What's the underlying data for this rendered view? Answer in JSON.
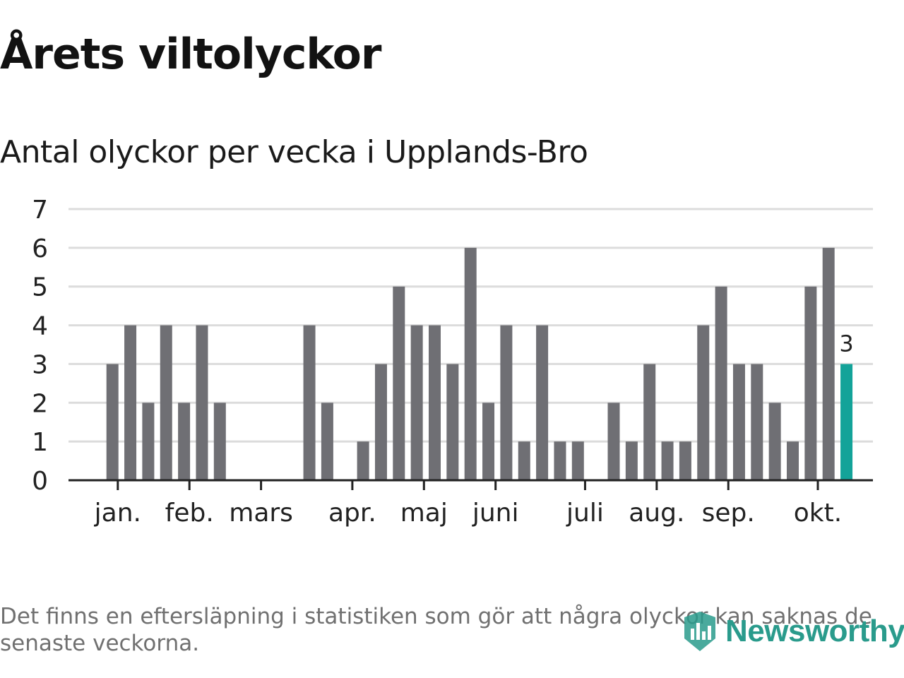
{
  "title": "Årets viltolyckor",
  "subtitle": "Antal olyckor per vecka i Upplands-Bro",
  "footnote": "Det finns en eftersläpning i statistiken som gör att några olyckor kan saknas de senaste veckorna.",
  "brand": {
    "name": "Newsworthy",
    "icon": "newsworthy-logo-icon"
  },
  "colors": {
    "bar": "#6f6f74",
    "highlight": "#13a399",
    "grid": "#dcdcdc",
    "axis": "#222222",
    "text": "#222222"
  },
  "chart_data": {
    "type": "bar",
    "title": "Antal olyckor per vecka i Upplands-Bro",
    "xlabel": "",
    "ylabel": "",
    "ylim": [
      0,
      7
    ],
    "yticks": [
      0,
      1,
      2,
      3,
      4,
      5,
      6,
      7
    ],
    "week_start": 1,
    "weeks": [
      1,
      2,
      3,
      4,
      5,
      6,
      7,
      8,
      9,
      10,
      11,
      12,
      13,
      14,
      15,
      16,
      17,
      18,
      19,
      20,
      21,
      22,
      23,
      24,
      25,
      26,
      27,
      28,
      29,
      30,
      31,
      32,
      33,
      34,
      35,
      36,
      37,
      38,
      39,
      40,
      41,
      42,
      43,
      44,
      45
    ],
    "values": [
      0,
      0,
      3,
      4,
      2,
      4,
      2,
      4,
      2,
      0,
      0,
      0,
      0,
      4,
      2,
      0,
      1,
      3,
      5,
      4,
      4,
      3,
      6,
      2,
      4,
      1,
      4,
      1,
      1,
      0,
      2,
      1,
      3,
      1,
      1,
      4,
      5,
      3,
      3,
      2,
      1,
      5,
      6,
      3,
      0
    ],
    "highlight_index": 43,
    "highlight_label": "3",
    "month_labels": [
      {
        "label": "jan.",
        "week": 3.3
      },
      {
        "label": "feb.",
        "week": 7.3
      },
      {
        "label": "mars",
        "week": 11.3
      },
      {
        "label": "apr.",
        "week": 16.4
      },
      {
        "label": "maj",
        "week": 20.4
      },
      {
        "label": "juni",
        "week": 24.4
      },
      {
        "label": "juli",
        "week": 29.4
      },
      {
        "label": "aug.",
        "week": 33.4
      },
      {
        "label": "sep.",
        "week": 37.4
      },
      {
        "label": "okt.",
        "week": 42.4
      }
    ]
  }
}
